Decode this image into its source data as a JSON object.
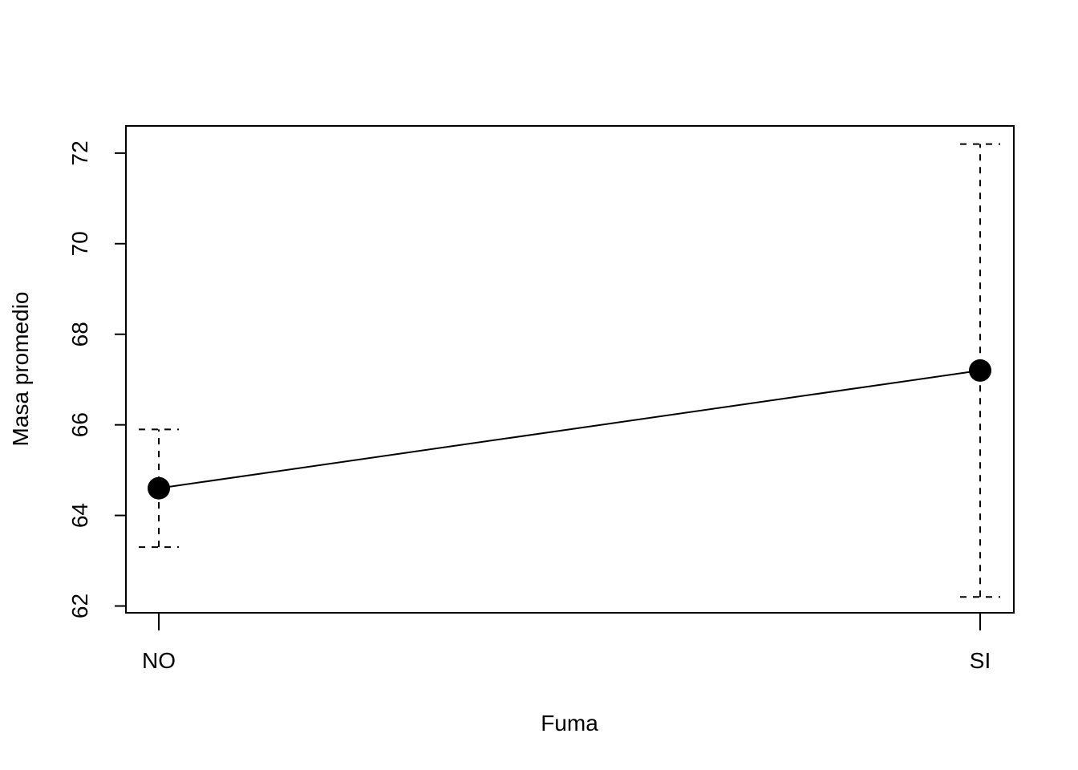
{
  "chart_data": {
    "type": "line",
    "xlabel": "Fuma",
    "ylabel": "Masa promedio",
    "categories": [
      "NO",
      "SI"
    ],
    "values": [
      64.6,
      67.2
    ],
    "error_bars": {
      "lower": [
        63.3,
        62.2
      ],
      "upper": [
        65.9,
        72.2
      ]
    },
    "ylim": [
      61.85,
      72.6
    ],
    "y_ticks": [
      62,
      64,
      66,
      68,
      70,
      72
    ],
    "grid": false,
    "legend": "none",
    "colors": {
      "line": "#000000",
      "point": "#000000",
      "error_bar": "#000000",
      "axis": "#000000"
    }
  }
}
